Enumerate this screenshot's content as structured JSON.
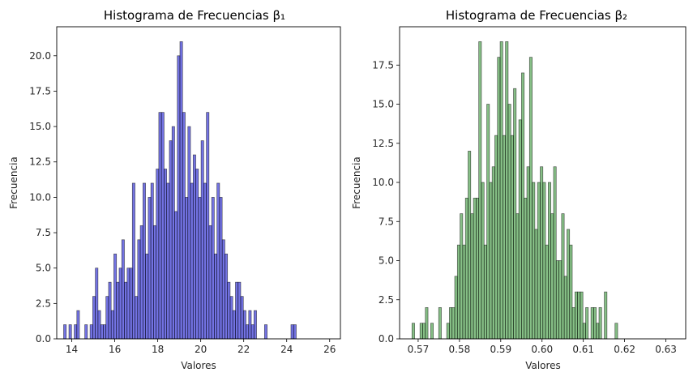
{
  "chart_data": [
    {
      "type": "bar",
      "title": "Histograma de Frecuencias β₁",
      "xlabel": "Valores",
      "ylabel": "Frecuencia",
      "color": "#0000cc",
      "edge_color": "#000000",
      "xlim": [
        13.3,
        26.5
      ],
      "ylim": [
        0,
        22.05
      ],
      "xticks": [
        14,
        16,
        18,
        20,
        22,
        24,
        26
      ],
      "xtick_labels": [
        "14",
        "16",
        "18",
        "20",
        "22",
        "24",
        "26"
      ],
      "yticks": [
        0,
        2.5,
        5,
        7.5,
        10,
        12.5,
        15,
        17.5,
        20
      ],
      "ytick_labels": [
        "0.0",
        "2.5",
        "5.0",
        "7.5",
        "10.0",
        "12.5",
        "15.0",
        "17.5",
        "20.0"
      ],
      "bin_start": 13.62,
      "bin_width": 0.123,
      "values": [
        1,
        0,
        1,
        0,
        1,
        2,
        0,
        0,
        1,
        0,
        1,
        3,
        5,
        2,
        1,
        1,
        3,
        4,
        2,
        6,
        4,
        5,
        7,
        4,
        5,
        5,
        11,
        3,
        7,
        8,
        11,
        6,
        10,
        11,
        8,
        12,
        16,
        16,
        12,
        11,
        14,
        15,
        9,
        20,
        21,
        16,
        10,
        15,
        11,
        13,
        12,
        10,
        14,
        11,
        16,
        8,
        10,
        6,
        11,
        10,
        7,
        6,
        4,
        3,
        2,
        4,
        4,
        3,
        2,
        1,
        2,
        1,
        2,
        0,
        0,
        0,
        1,
        0,
        0,
        0,
        0,
        0,
        0,
        0,
        0,
        0,
        1,
        1,
        0,
        0,
        0,
        0,
        0,
        0,
        0,
        0,
        0,
        0,
        0,
        0
      ]
    },
    {
      "type": "bar",
      "title": "Histograma de Frecuencias β₂",
      "xlabel": "Valores",
      "ylabel": "Frecuencia",
      "color": "#228b22",
      "edge_color": "#000000",
      "xlim": [
        0.5655,
        0.6348
      ],
      "ylim": [
        0,
        19.95
      ],
      "xticks": [
        0.57,
        0.58,
        0.59,
        0.6,
        0.61,
        0.62,
        0.63
      ],
      "xtick_labels": [
        "0.57",
        "0.58",
        "0.59",
        "0.60",
        "0.61",
        "0.62",
        "0.63"
      ],
      "yticks": [
        0,
        2.5,
        5,
        7.5,
        10,
        12.5,
        15,
        17.5
      ],
      "ytick_labels": [
        "0.0",
        "2.5",
        "5.0",
        "7.5",
        "10.0",
        "12.5",
        "15.0",
        "17.5"
      ],
      "bin_start": 0.5685,
      "bin_width": 0.000647,
      "values": [
        1,
        0,
        0,
        1,
        1,
        2,
        0,
        1,
        0,
        0,
        2,
        0,
        0,
        1,
        2,
        2,
        4,
        6,
        8,
        6,
        9,
        12,
        8,
        9,
        9,
        19,
        10,
        6,
        15,
        10,
        11,
        13,
        18,
        19,
        13,
        19,
        15,
        13,
        16,
        8,
        14,
        17,
        9,
        11,
        18,
        10,
        7,
        10,
        11,
        10,
        6,
        10,
        8,
        11,
        5,
        5,
        8,
        4,
        7,
        6,
        2,
        3,
        3,
        3,
        1,
        2,
        0,
        2,
        2,
        1,
        2,
        0,
        3,
        0,
        0,
        0,
        1
      ]
    }
  ]
}
